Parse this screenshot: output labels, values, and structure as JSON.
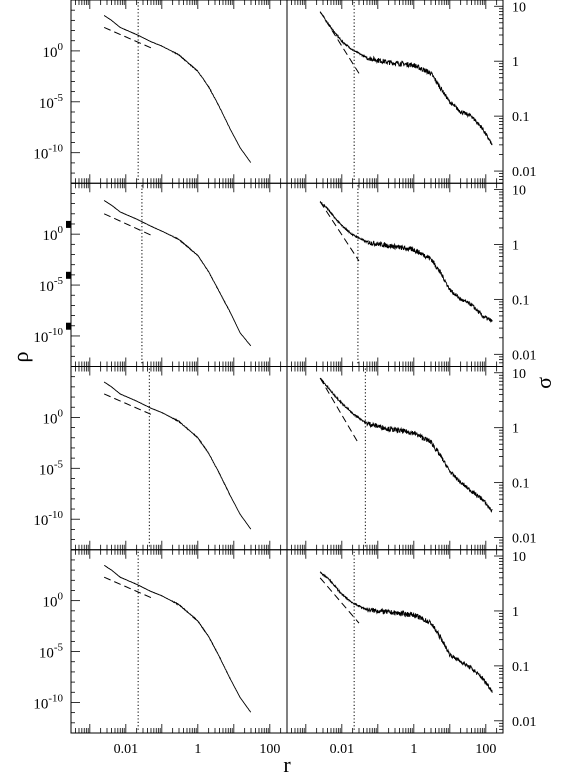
{
  "figure": {
    "xlabel": "r",
    "ylabel_left": "ρ",
    "ylabel_right": "σ"
  },
  "chart_data": {
    "type": "line",
    "layout": "4 rows x 2 columns of stacked log-log panels with shared axes",
    "x_axis": {
      "label": "r",
      "scale": "log",
      "range": [
        0.0003,
        300
      ],
      "tick_labels": [
        {
          "value": 0.01,
          "text": "0.01"
        },
        {
          "value": 1,
          "text": "1"
        },
        {
          "value": 100,
          "text": "100"
        }
      ]
    },
    "left_y_axis": {
      "label": "ρ",
      "scale": "log",
      "range": [
        1e-13,
        100000.0
      ],
      "tick_labels": [
        {
          "value": 1,
          "base": "10",
          "exp": "0"
        },
        {
          "value": 1e-05,
          "base": "10",
          "exp": "-5"
        },
        {
          "value": 1e-10,
          "base": "10",
          "exp": "-10"
        }
      ]
    },
    "right_y_axis": {
      "label": "σ",
      "scale": "log",
      "range": [
        0.006,
        13
      ],
      "tick_labels": [
        {
          "value": 10,
          "text": "10"
        },
        {
          "value": 1,
          "text": "1"
        },
        {
          "value": 0.1,
          "text": "0.1"
        },
        {
          "value": 0.01,
          "text": "0.01"
        }
      ]
    },
    "grid": false,
    "legend": "none",
    "line_color": "#000000",
    "panels": [
      {
        "row": 1,
        "density": {
          "vertical_line_r": 0.022,
          "reference_line": {
            "x": [
              0.0025,
              0.05
            ],
            "y": [
              200,
              2
            ]
          },
          "profile": [
            [
              0.0025,
              3000
            ],
            [
              0.004,
              1000
            ],
            [
              0.007,
              200
            ],
            [
              0.02,
              40
            ],
            [
              0.05,
              8
            ],
            [
              0.1,
              3
            ],
            [
              0.3,
              0.4
            ],
            [
              1,
              0.01
            ],
            [
              2,
              0.0003
            ],
            [
              4,
              3e-06
            ],
            [
              8,
              2e-08
            ],
            [
              15,
              3e-10
            ],
            [
              30,
              1e-11
            ]
          ]
        },
        "dispersion": {
          "vertical_line_r": 0.022,
          "reference_line": {
            "x": [
              0.0025,
              0.03
            ],
            "y": [
              8,
              0.6
            ]
          },
          "profile": [
            [
              0.0025,
              8
            ],
            [
              0.004,
              5
            ],
            [
              0.006,
              3.5
            ],
            [
              0.01,
              2.3
            ],
            [
              0.02,
              1.6
            ],
            [
              0.05,
              1.15
            ],
            [
              0.2,
              0.95
            ],
            [
              1,
              0.85
            ],
            [
              3,
              0.6
            ],
            [
              6,
              0.3
            ],
            [
              10,
              0.18
            ],
            [
              20,
              0.12
            ],
            [
              40,
              0.1
            ],
            [
              80,
              0.06
            ],
            [
              150,
              0.03
            ]
          ]
        }
      },
      {
        "row": 2,
        "density": {
          "vertical_line_r": 0.028,
          "reference_line": {
            "x": [
              0.0025,
              0.05
            ],
            "y": [
              100,
              0.8
            ]
          },
          "profile": [
            [
              0.0025,
              2000
            ],
            [
              0.004,
              700
            ],
            [
              0.007,
              150
            ],
            [
              0.02,
              30
            ],
            [
              0.05,
              6
            ],
            [
              0.1,
              2
            ],
            [
              0.3,
              0.3
            ],
            [
              1,
              0.008
            ],
            [
              2,
              0.0002
            ],
            [
              4,
              2e-06
            ],
            [
              8,
              2e-08
            ],
            [
              15,
              2e-10
            ],
            [
              30,
              1e-11
            ]
          ]
        },
        "dispersion": {
          "vertical_line_r": 0.028,
          "reference_line": {
            "x": [
              0.0025,
              0.03
            ],
            "y": [
              6,
              0.5
            ]
          },
          "profile": [
            [
              0.0025,
              6
            ],
            [
              0.004,
              4.5
            ],
            [
              0.006,
              3.2
            ],
            [
              0.01,
              2.2
            ],
            [
              0.02,
              1.5
            ],
            [
              0.05,
              1.1
            ],
            [
              0.2,
              0.95
            ],
            [
              1,
              0.8
            ],
            [
              3,
              0.55
            ],
            [
              6,
              0.28
            ],
            [
              10,
              0.15
            ],
            [
              20,
              0.1
            ],
            [
              40,
              0.08
            ],
            [
              80,
              0.05
            ],
            [
              150,
              0.04
            ]
          ]
        }
      },
      {
        "row": 3,
        "density": {
          "vertical_line_r": 0.045,
          "reference_line": {
            "x": [
              0.0025,
              0.05
            ],
            "y": [
              200,
              2
            ]
          },
          "profile": [
            [
              0.0025,
              3000
            ],
            [
              0.004,
              1000
            ],
            [
              0.007,
              200
            ],
            [
              0.02,
              40
            ],
            [
              0.05,
              8
            ],
            [
              0.1,
              3
            ],
            [
              0.3,
              0.4
            ],
            [
              1,
              0.01
            ],
            [
              2,
              0.0003
            ],
            [
              4,
              3e-06
            ],
            [
              8,
              2e-08
            ],
            [
              15,
              3e-10
            ],
            [
              30,
              1e-11
            ]
          ]
        },
        "dispersion": {
          "vertical_line_r": 0.045,
          "reference_line": {
            "x": [
              0.0025,
              0.03
            ],
            "y": [
              8,
              0.5
            ]
          },
          "profile": [
            [
              0.0025,
              8
            ],
            [
              0.004,
              5.5
            ],
            [
              0.006,
              4
            ],
            [
              0.01,
              2.8
            ],
            [
              0.02,
              1.8
            ],
            [
              0.05,
              1.2
            ],
            [
              0.2,
              0.95
            ],
            [
              1,
              0.8
            ],
            [
              3,
              0.55
            ],
            [
              6,
              0.28
            ],
            [
              10,
              0.16
            ],
            [
              20,
              0.1
            ],
            [
              40,
              0.07
            ],
            [
              80,
              0.05
            ],
            [
              150,
              0.03
            ]
          ]
        }
      },
      {
        "row": 4,
        "density": {
          "vertical_line_r": 0.022,
          "reference_line": {
            "x": [
              0.0025,
              0.05
            ],
            "y": [
              200,
              2
            ]
          },
          "profile": [
            [
              0.0025,
              3000
            ],
            [
              0.004,
              1000
            ],
            [
              0.007,
              200
            ],
            [
              0.02,
              40
            ],
            [
              0.05,
              8
            ],
            [
              0.1,
              3
            ],
            [
              0.3,
              0.4
            ],
            [
              1,
              0.01
            ],
            [
              2,
              0.0003
            ],
            [
              4,
              3e-06
            ],
            [
              8,
              2e-08
            ],
            [
              15,
              3e-10
            ],
            [
              30,
              1e-11
            ]
          ]
        },
        "dispersion": {
          "vertical_line_r": 0.022,
          "reference_line": {
            "x": [
              0.0025,
              0.03
            ],
            "y": [
              4,
              0.6
            ]
          },
          "profile": [
            [
              0.0025,
              5
            ],
            [
              0.004,
              4
            ],
            [
              0.006,
              3
            ],
            [
              0.01,
              2
            ],
            [
              0.02,
              1.4
            ],
            [
              0.05,
              1.05
            ],
            [
              0.2,
              0.95
            ],
            [
              1,
              0.85
            ],
            [
              3,
              0.6
            ],
            [
              6,
              0.3
            ],
            [
              10,
              0.16
            ],
            [
              20,
              0.12
            ],
            [
              40,
              0.09
            ],
            [
              80,
              0.06
            ],
            [
              150,
              0.035
            ]
          ]
        }
      }
    ]
  }
}
